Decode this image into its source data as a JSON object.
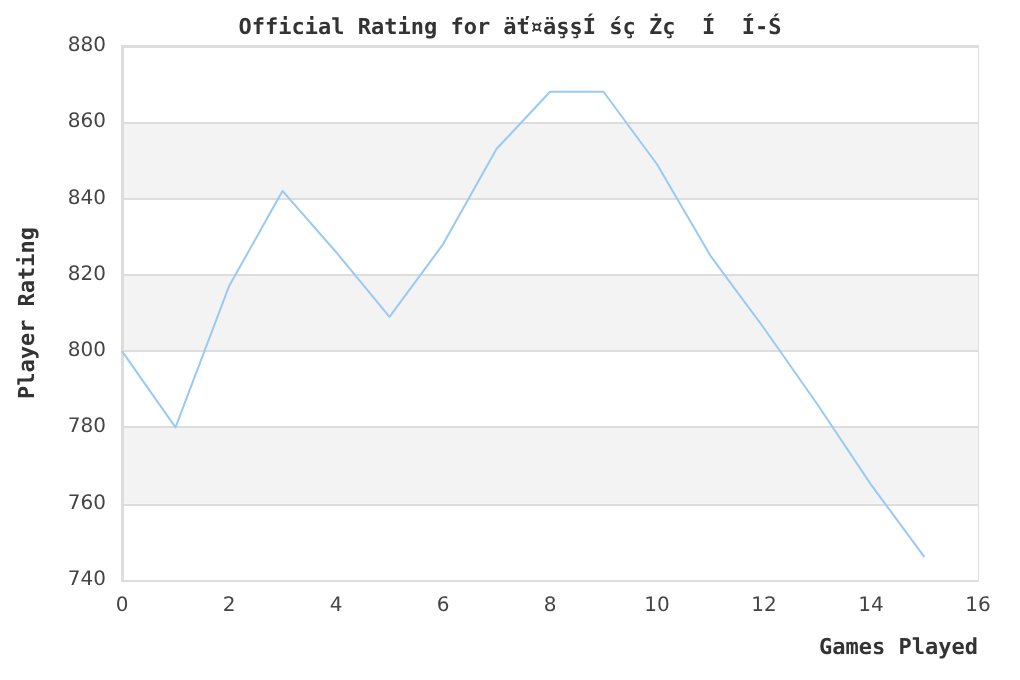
{
  "chart_data": {
    "type": "line",
    "title": "Official Rating for äť¤äşşÍ śç Żç  Í  Í-Ś",
    "xlabel": "Games Played",
    "ylabel": "Player Rating",
    "x": [
      0,
      1,
      2,
      3,
      4,
      5,
      6,
      7,
      8,
      9,
      10,
      11,
      12,
      13,
      14,
      15
    ],
    "series": [
      {
        "color": "#99c9f5",
        "values": [
          800,
          780,
          817,
          842,
          826,
          809,
          828,
          853,
          868,
          868,
          849,
          825,
          806,
          786,
          765,
          746
        ]
      }
    ],
    "xlim": [
      0,
      16
    ],
    "xticks": [
      0,
      2,
      4,
      6,
      8,
      10,
      12,
      14,
      16
    ],
    "ylim": [
      740,
      880
    ],
    "yticks": [
      740,
      760,
      780,
      800,
      820,
      840,
      860,
      880
    ],
    "grid": "y",
    "marker": "none",
    "line_style": "solid"
  }
}
